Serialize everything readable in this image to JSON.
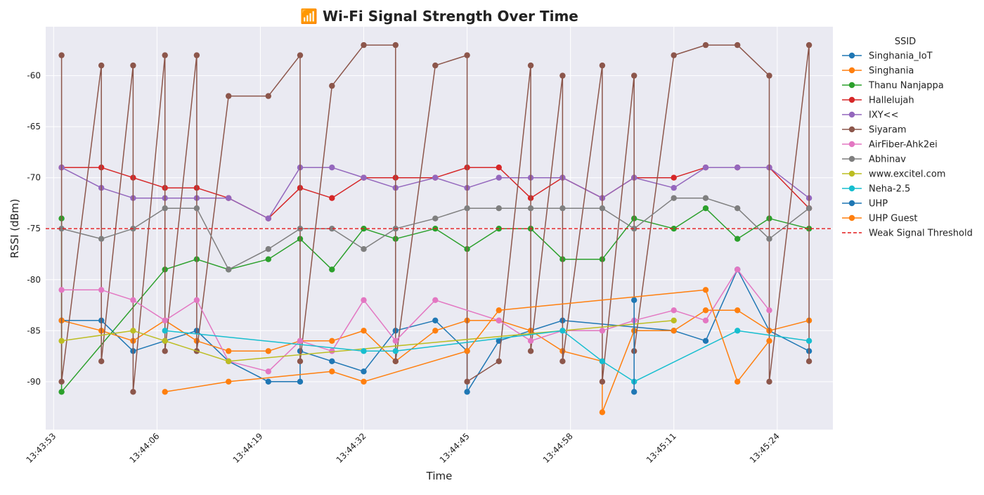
{
  "chart_data": {
    "type": "line",
    "title": "📶 Wi-Fi Signal Strength Over Time",
    "xlabel": "Time",
    "ylabel": "RSSI (dBm)",
    "x_ticks": [
      "13:43:53",
      "13:44:06",
      "13:44:19",
      "13:44:32",
      "13:44:45",
      "13:44:58",
      "13:45:11",
      "13:45:24"
    ],
    "y_ticks": [
      -90,
      -85,
      -80,
      -75,
      -70,
      -65,
      -60
    ],
    "xlim": [
      "13:43:52",
      "13:45:31"
    ],
    "ylim": [
      -94.7,
      -55.2
    ],
    "grid": true,
    "legend_title": "SSID",
    "legend_position": "outside-right",
    "threshold": {
      "name": "Weak Signal Threshold",
      "y": -75,
      "color": "#e41a1c",
      "style": "dashed"
    },
    "series": [
      {
        "name": "Singhania_IoT",
        "color": "#1f77b4",
        "points": [
          [
            "13:43:54",
            -84
          ],
          [
            "13:43:59",
            -84
          ],
          [
            "13:44:03",
            -87
          ],
          [
            "13:44:07",
            -86
          ],
          [
            "13:44:11",
            -85
          ],
          [
            "13:44:15",
            -88
          ],
          [
            "13:44:20",
            -90
          ],
          [
            "13:44:24",
            -90
          ],
          [
            "13:44:24",
            -87
          ],
          [
            "13:44:28",
            -88
          ],
          [
            "13:44:32",
            -89
          ],
          [
            "13:44:36",
            -85
          ],
          [
            "13:44:41",
            -84
          ],
          [
            "13:44:45",
            -87
          ],
          [
            "13:44:45",
            -91
          ],
          [
            "13:44:49",
            -86
          ],
          [
            "13:44:53",
            -85
          ],
          [
            "13:44:57",
            -84
          ],
          [
            "13:45:11",
            -85
          ],
          [
            "13:45:15",
            -86
          ],
          [
            "13:45:19",
            -79
          ],
          [
            "13:45:23",
            -85
          ],
          [
            "13:45:28",
            -87
          ]
        ]
      },
      {
        "name": "Singhania",
        "color": "#ff7f0e",
        "points": [
          [
            "13:43:54",
            -84
          ],
          [
            "13:43:59",
            -85
          ],
          [
            "13:44:03",
            -86
          ],
          [
            "13:44:07",
            -84
          ],
          [
            "13:44:11",
            -86
          ],
          [
            "13:44:15",
            -87
          ],
          [
            "13:44:20",
            -87
          ],
          [
            "13:44:24",
            -86
          ],
          [
            "13:44:28",
            -86
          ],
          [
            "13:44:32",
            -85
          ],
          [
            "13:44:36",
            -88
          ],
          [
            "13:44:41",
            -85
          ],
          [
            "13:44:45",
            -84
          ],
          [
            "13:44:49",
            -84
          ],
          [
            "13:44:53",
            -85
          ],
          [
            "13:44:57",
            -87
          ],
          [
            "13:45:02",
            -88
          ],
          [
            "13:45:02",
            -93
          ],
          [
            "13:45:06",
            -85
          ],
          [
            "13:45:11",
            -85
          ],
          [
            "13:45:15",
            -83
          ],
          [
            "13:45:19",
            -83
          ],
          [
            "13:45:23",
            -85
          ],
          [
            "13:45:28",
            -84
          ]
        ]
      },
      {
        "name": "Thanu Nanjappa",
        "color": "#2ca02c",
        "points": [
          [
            "13:43:54",
            -74
          ],
          [
            "13:43:54",
            -91
          ],
          [
            "13:44:07",
            -79
          ],
          [
            "13:44:11",
            -78
          ],
          [
            "13:44:15",
            -79
          ],
          [
            "13:44:20",
            -78
          ],
          [
            "13:44:24",
            -76
          ],
          [
            "13:44:28",
            -79
          ],
          [
            "13:44:32",
            -75
          ],
          [
            "13:44:36",
            -76
          ],
          [
            "13:44:41",
            -75
          ],
          [
            "13:44:45",
            -77
          ],
          [
            "13:44:49",
            -75
          ],
          [
            "13:44:53",
            -75
          ],
          [
            "13:44:57",
            -78
          ],
          [
            "13:45:02",
            -78
          ],
          [
            "13:45:06",
            -74
          ],
          [
            "13:45:11",
            -75
          ],
          [
            "13:45:15",
            -73
          ],
          [
            "13:45:19",
            -76
          ],
          [
            "13:45:23",
            -74
          ],
          [
            "13:45:28",
            -75
          ]
        ]
      },
      {
        "name": "Hallelujah",
        "color": "#d62728",
        "points": [
          [
            "13:43:54",
            -69
          ],
          [
            "13:43:59",
            -69
          ],
          [
            "13:44:03",
            -70
          ],
          [
            "13:44:07",
            -71
          ],
          [
            "13:44:11",
            -71
          ],
          [
            "13:44:15",
            -72
          ],
          [
            "13:44:20",
            -74
          ],
          [
            "13:44:24",
            -71
          ],
          [
            "13:44:28",
            -72
          ],
          [
            "13:44:32",
            -70
          ],
          [
            "13:44:36",
            -70
          ],
          [
            "13:44:41",
            -70
          ],
          [
            "13:44:45",
            -69
          ],
          [
            "13:44:49",
            -69
          ],
          [
            "13:44:53",
            -72
          ],
          [
            "13:44:57",
            -70
          ],
          [
            "13:45:02",
            -72
          ],
          [
            "13:45:06",
            -70
          ],
          [
            "13:45:11",
            -70
          ],
          [
            "13:45:15",
            -69
          ],
          [
            "13:45:19",
            -69
          ],
          [
            "13:45:23",
            -69
          ],
          [
            "13:45:28",
            -73
          ]
        ]
      },
      {
        "name": "IXY<<",
        "color": "#9467bd",
        "points": [
          [
            "13:43:54",
            -69
          ],
          [
            "13:43:59",
            -71
          ],
          [
            "13:44:03",
            -72
          ],
          [
            "13:44:07",
            -72
          ],
          [
            "13:44:11",
            -72
          ],
          [
            "13:44:15",
            -72
          ],
          [
            "13:44:20",
            -74
          ],
          [
            "13:44:24",
            -69
          ],
          [
            "13:44:28",
            -69
          ],
          [
            "13:44:32",
            -70
          ],
          [
            "13:44:36",
            -71
          ],
          [
            "13:44:41",
            -70
          ],
          [
            "13:44:45",
            -71
          ],
          [
            "13:44:49",
            -70
          ],
          [
            "13:44:53",
            -70
          ],
          [
            "13:44:57",
            -70
          ],
          [
            "13:45:02",
            -72
          ],
          [
            "13:45:06",
            -70
          ],
          [
            "13:45:11",
            -71
          ],
          [
            "13:45:15",
            -69
          ],
          [
            "13:45:19",
            -69
          ],
          [
            "13:45:23",
            -69
          ],
          [
            "13:45:28",
            -72
          ]
        ]
      },
      {
        "name": "Siyaram",
        "color": "#8c564b",
        "points": [
          [
            "13:43:54",
            -58
          ],
          [
            "13:43:54",
            -90
          ],
          [
            "13:43:59",
            -59
          ],
          [
            "13:43:59",
            -88
          ],
          [
            "13:44:03",
            -59
          ],
          [
            "13:44:03",
            -91
          ],
          [
            "13:44:07",
            -58
          ],
          [
            "13:44:07",
            -87
          ],
          [
            "13:44:11",
            -58
          ],
          [
            "13:44:11",
            -87
          ],
          [
            "13:44:15",
            -62
          ],
          [
            "13:44:20",
            -62
          ],
          [
            "13:44:24",
            -58
          ],
          [
            "13:44:24",
            -88
          ],
          [
            "13:44:28",
            -61
          ],
          [
            "13:44:32",
            -57
          ],
          [
            "13:44:36",
            -57
          ],
          [
            "13:44:36",
            -88
          ],
          [
            "13:44:41",
            -59
          ],
          [
            "13:44:45",
            -58
          ],
          [
            "13:44:45",
            -90
          ],
          [
            "13:44:49",
            -88
          ],
          [
            "13:44:53",
            -59
          ],
          [
            "13:44:53",
            -87
          ],
          [
            "13:44:57",
            -60
          ],
          [
            "13:44:57",
            -88
          ],
          [
            "13:45:02",
            -59
          ],
          [
            "13:45:02",
            -90
          ],
          [
            "13:45:06",
            -60
          ],
          [
            "13:45:06",
            -87
          ],
          [
            "13:45:11",
            -58
          ],
          [
            "13:45:15",
            -57
          ],
          [
            "13:45:19",
            -57
          ],
          [
            "13:45:23",
            -60
          ],
          [
            "13:45:23",
            -90
          ],
          [
            "13:45:28",
            -57
          ],
          [
            "13:45:28",
            -88
          ]
        ]
      },
      {
        "name": "AirFiber-Ahk2ei",
        "color": "#e377c2",
        "points": [
          [
            "13:43:54",
            -81
          ],
          [
            "13:43:59",
            -81
          ],
          [
            "13:44:03",
            -82
          ],
          [
            "13:44:07",
            -84
          ],
          [
            "13:44:11",
            -82
          ],
          [
            "13:44:15",
            -88
          ],
          [
            "13:44:20",
            -89
          ],
          [
            "13:44:24",
            -86
          ],
          [
            "13:44:28",
            -87
          ],
          [
            "13:44:32",
            -82
          ],
          [
            "13:44:36",
            -86
          ],
          [
            "13:44:41",
            -82
          ],
          [
            "13:44:49",
            -84
          ],
          [
            "13:44:53",
            -86
          ],
          [
            "13:44:57",
            -85
          ],
          [
            "13:45:02",
            -85
          ],
          [
            "13:45:06",
            -84
          ],
          [
            "13:45:11",
            -83
          ],
          [
            "13:45:15",
            -84
          ],
          [
            "13:45:19",
            -79
          ],
          [
            "13:45:23",
            -83
          ]
        ]
      },
      {
        "name": "Abhinav",
        "color": "#7f7f7f",
        "points": [
          [
            "13:43:54",
            -75
          ],
          [
            "13:43:59",
            -76
          ],
          [
            "13:44:03",
            -75
          ],
          [
            "13:44:07",
            -73
          ],
          [
            "13:44:11",
            -73
          ],
          [
            "13:44:15",
            -79
          ],
          [
            "13:44:20",
            -77
          ],
          [
            "13:44:24",
            -75
          ],
          [
            "13:44:28",
            -75
          ],
          [
            "13:44:32",
            -77
          ],
          [
            "13:44:36",
            -75
          ],
          [
            "13:44:41",
            -74
          ],
          [
            "13:44:45",
            -73
          ],
          [
            "13:44:49",
            -73
          ],
          [
            "13:44:53",
            -73
          ],
          [
            "13:44:57",
            -73
          ],
          [
            "13:45:02",
            -73
          ],
          [
            "13:45:06",
            -75
          ],
          [
            "13:45:11",
            -72
          ],
          [
            "13:45:15",
            -72
          ],
          [
            "13:45:19",
            -73
          ],
          [
            "13:45:23",
            -76
          ],
          [
            "13:45:28",
            -73
          ]
        ]
      },
      {
        "name": "www.excitel.com",
        "color": "#bcbd22",
        "points": [
          [
            "13:43:54",
            -86
          ],
          [
            "13:44:03",
            -85
          ],
          [
            "13:44:07",
            -86
          ],
          [
            "13:44:15",
            -88
          ],
          [
            "13:45:11",
            -84
          ]
        ]
      },
      {
        "name": "Neha-2.5",
        "color": "#17becf",
        "points": [
          [
            "13:44:07",
            -85
          ],
          [
            "13:44:32",
            -87
          ],
          [
            "13:44:36",
            -87
          ],
          [
            "13:44:57",
            -85
          ],
          [
            "13:45:02",
            -88
          ],
          [
            "13:45:06",
            -90
          ],
          [
            "13:45:19",
            -85
          ],
          [
            "13:45:28",
            -86
          ]
        ]
      },
      {
        "name": "UHP",
        "color": "#1f77b4",
        "points": [
          [
            "13:45:06",
            -82
          ],
          [
            "13:45:06",
            -91
          ]
        ]
      },
      {
        "name": "UHP Guest",
        "color": "#ff7f0e",
        "points": [
          [
            "13:44:07",
            -91
          ],
          [
            "13:44:15",
            -90
          ],
          [
            "13:44:28",
            -89
          ],
          [
            "13:44:32",
            -90
          ],
          [
            "13:44:45",
            -87
          ],
          [
            "13:44:49",
            -83
          ],
          [
            "13:45:15",
            -81
          ],
          [
            "13:45:19",
            -90
          ],
          [
            "13:45:23",
            -86
          ]
        ]
      }
    ]
  }
}
